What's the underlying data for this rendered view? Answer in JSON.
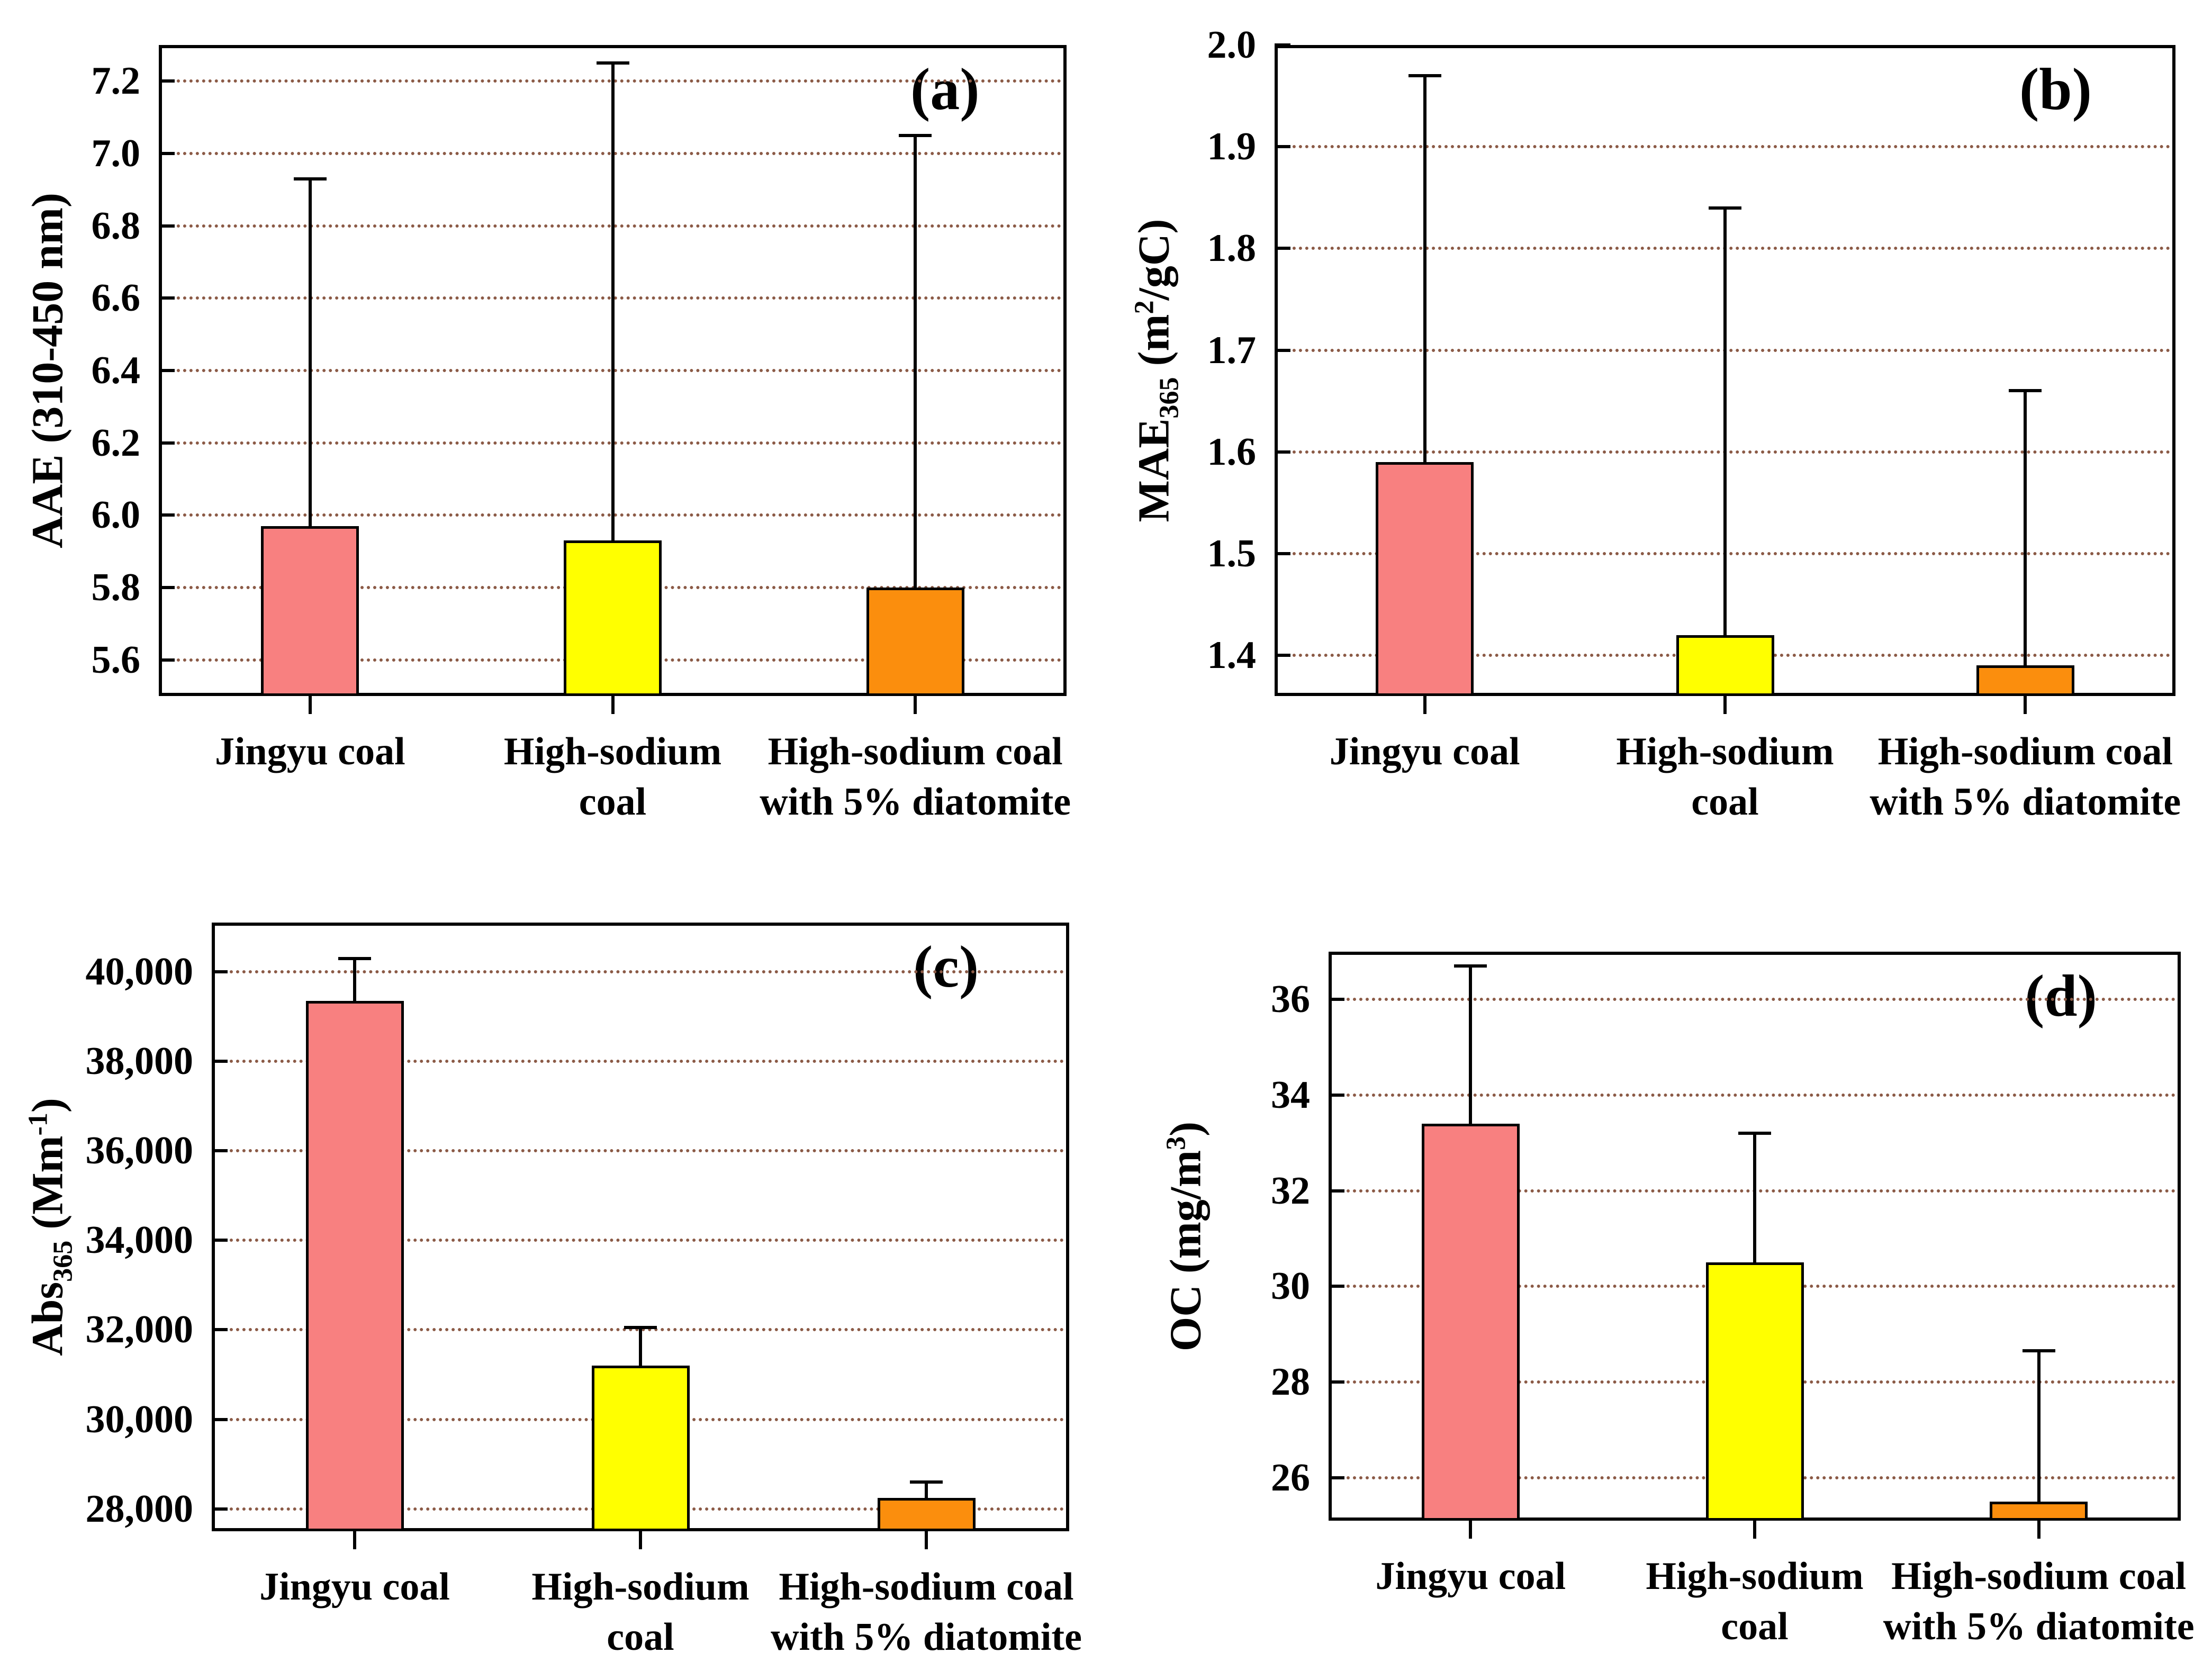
{
  "figure": {
    "background": "#ffffff",
    "text_color": "#000000",
    "frame_color": "#000000",
    "grid_dot_color": "#8B5A46",
    "bar_border_color": "#000000",
    "bar_fill_colors": [
      "#F88080",
      "#FFFF00",
      "#FB8E0D"
    ],
    "grid_style": "dotted"
  },
  "chart_data": [
    {
      "id": "a",
      "type": "bar",
      "letter": "(a)",
      "ylabel": "AAE (310-450 nm)",
      "ylabel_segments": [
        {
          "t": "AAE (310-450 nm)"
        }
      ],
      "xlabel": "",
      "ylim": [
        5.5,
        7.3
      ],
      "yticks": [
        5.6,
        5.8,
        6.0,
        6.2,
        6.4,
        6.6,
        6.8,
        7.0,
        7.2
      ],
      "ytick_labels": [
        "5.6",
        "5.8",
        "6.0",
        "6.2",
        "6.4",
        "6.6",
        "6.8",
        "7.0",
        "7.2"
      ],
      "categories": [
        "Jingyu coal",
        "High-sodium coal",
        "High-sodium coal with 5% diatomite"
      ],
      "category_lines": [
        [
          "Jingyu coal"
        ],
        [
          "High-sodium",
          "coal"
        ],
        [
          "High-sodium coal",
          "with 5% diatomite"
        ]
      ],
      "values": [
        5.97,
        5.93,
        5.8
      ],
      "error_top": [
        6.93,
        7.25,
        7.05
      ],
      "legend": null,
      "grid": "on-dotted"
    },
    {
      "id": "b",
      "type": "bar",
      "letter": "(b)",
      "ylabel": "MAE365 (m2/gC)",
      "ylabel_segments": [
        {
          "t": "MAE"
        },
        {
          "t": "365",
          "sub": true
        },
        {
          "t": " (m"
        },
        {
          "t": "2",
          "sup": true
        },
        {
          "t": "/gC)"
        }
      ],
      "xlabel": "",
      "ylim": [
        1.36,
        2.0
      ],
      "yticks": [
        1.4,
        1.5,
        1.6,
        1.7,
        1.8,
        1.9,
        2.0
      ],
      "ytick_labels": [
        "1.4",
        "1.5",
        "1.6",
        "1.7",
        "1.8",
        "1.9",
        "2.0"
      ],
      "categories": [
        "Jingyu coal",
        "High-sodium coal",
        "High-sodium coal with 5% diatomite"
      ],
      "category_lines": [
        [
          "Jingyu coal"
        ],
        [
          "High-sodium",
          "coal"
        ],
        [
          "High-sodium coal",
          "with 5% diatomite"
        ]
      ],
      "values": [
        1.59,
        1.42,
        1.39
      ],
      "error_top": [
        1.97,
        1.84,
        1.66
      ],
      "legend": null,
      "grid": "on-dotted"
    },
    {
      "id": "c",
      "type": "bar",
      "letter": "(c)",
      "ylabel": "Abs365 (Mm-1)",
      "ylabel_segments": [
        {
          "t": "Abs"
        },
        {
          "t": "365",
          "sub": true
        },
        {
          "t": " (Mm"
        },
        {
          "t": "-1",
          "sup": true
        },
        {
          "t": ")"
        }
      ],
      "xlabel": "",
      "ylim": [
        27500,
        41100
      ],
      "yticks": [
        28000,
        30000,
        32000,
        34000,
        36000,
        38000,
        40000
      ],
      "ytick_labels": [
        "28,000",
        "30,000",
        "32,000",
        "34,000",
        "36,000",
        "38,000",
        "40,000"
      ],
      "categories": [
        "Jingyu coal",
        "High-sodium coal",
        "High-sodium coal with 5% diatomite"
      ],
      "category_lines": [
        [
          "Jingyu coal"
        ],
        [
          "High-sodium",
          "coal"
        ],
        [
          "High-sodium coal",
          "with 5% diatomite"
        ]
      ],
      "values": [
        39350,
        31200,
        28250
      ],
      "error_top": [
        40300,
        32050,
        28600
      ],
      "legend": null,
      "grid": "on-dotted"
    },
    {
      "id": "d",
      "type": "bar",
      "letter": "(d)",
      "ylabel": "OC (mg/m3)",
      "ylabel_segments": [
        {
          "t": "OC (mg/m"
        },
        {
          "t": "3",
          "sup": true
        },
        {
          "t": ")"
        }
      ],
      "xlabel": "",
      "ylim": [
        25.1,
        37.0
      ],
      "yticks": [
        26,
        28,
        30,
        32,
        34,
        36
      ],
      "ytick_labels": [
        "26",
        "28",
        "30",
        "32",
        "34",
        "36"
      ],
      "categories": [
        "Jingyu coal",
        "High-sodium coal",
        "High-sodium coal with 5% diatomite"
      ],
      "category_lines": [
        [
          "Jingyu coal"
        ],
        [
          "High-sodium",
          "coal"
        ],
        [
          "High-sodium coal",
          "with 5% diatomite"
        ]
      ],
      "values": [
        33.4,
        30.5,
        25.5
      ],
      "error_top": [
        36.7,
        33.2,
        28.65
      ],
      "legend": null,
      "grid": "on-dotted"
    }
  ]
}
